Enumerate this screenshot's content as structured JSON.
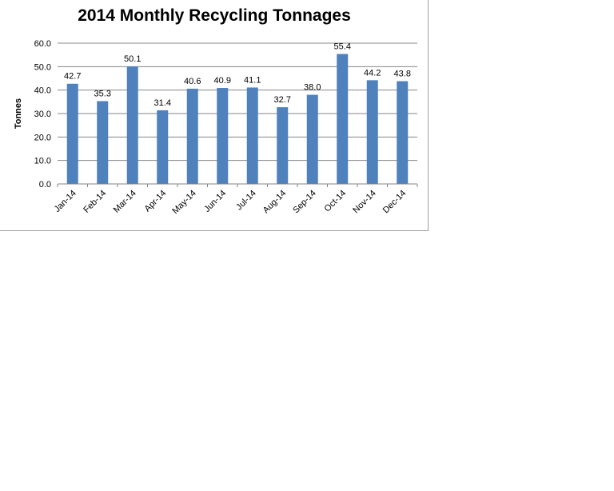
{
  "chart_data": {
    "type": "bar",
    "title": "2014 Monthly Recycling Tonnages",
    "xlabel": "",
    "ylabel": "Tonnes",
    "ylim": [
      0,
      60
    ],
    "yticks": [
      "0.0",
      "10.0",
      "20.0",
      "30.0",
      "40.0",
      "50.0",
      "60.0"
    ],
    "grid": true,
    "legend": "none",
    "categories": [
      "Jan-14",
      "Feb-14",
      "Mar-14",
      "Apr-14",
      "May-14",
      "Jun-14",
      "Jul-14",
      "Aug-14",
      "Sep-14",
      "Oct-14",
      "Nov-14",
      "Dec-14"
    ],
    "values": [
      42.7,
      35.3,
      50.1,
      31.4,
      40.6,
      40.9,
      41.1,
      32.7,
      38.0,
      55.4,
      44.2,
      43.8
    ],
    "value_labels": [
      "42.7",
      "35.3",
      "50.1",
      "31.4",
      "40.6",
      "40.9",
      "41.1",
      "32.7",
      "38.0",
      "55.4",
      "44.2",
      "43.8"
    ],
    "bar_color": "#4f81bd",
    "grid_color": "#868686"
  }
}
